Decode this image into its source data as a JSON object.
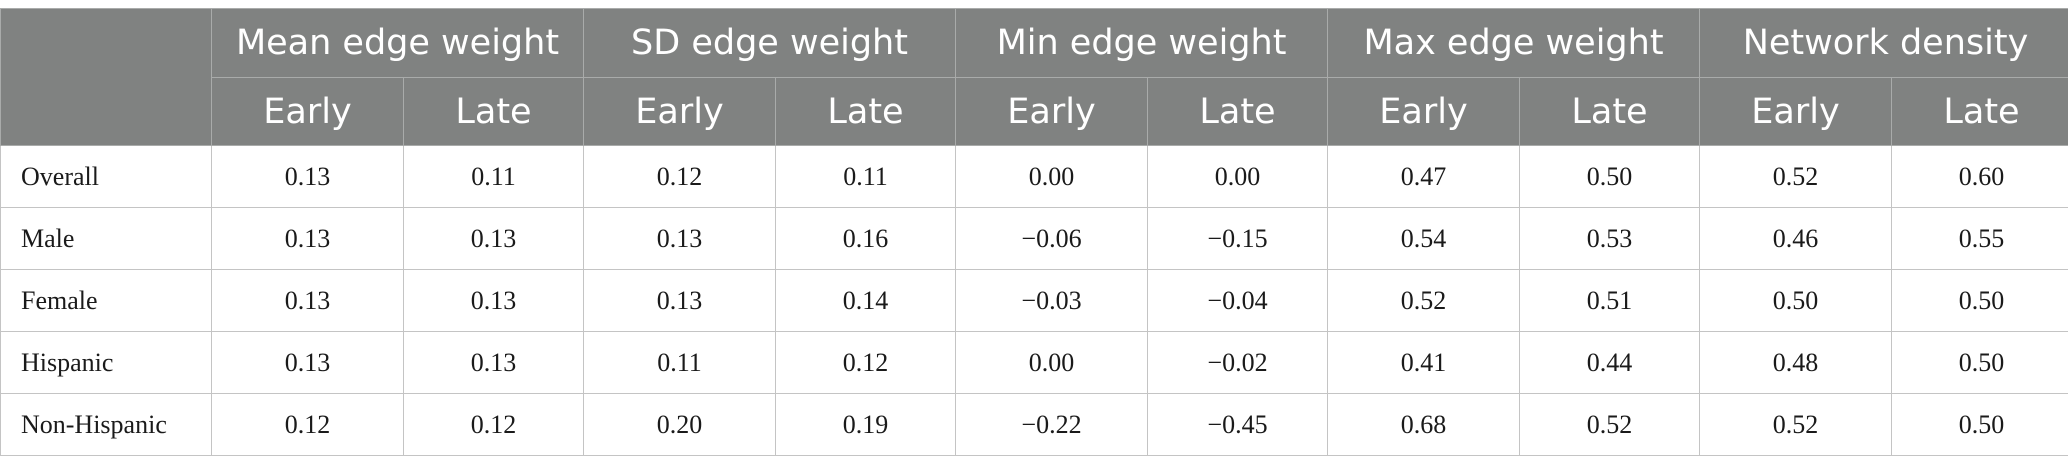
{
  "table": {
    "groups": [
      "Mean edge weight",
      "SD edge weight",
      "Min edge weight",
      "Max edge weight",
      "Network density"
    ],
    "subheaders": [
      "Early",
      "Late"
    ],
    "rows": [
      {
        "label": "Overall",
        "values": [
          "0.13",
          "0.11",
          "0.12",
          "0.11",
          "0.00",
          "0.00",
          "0.47",
          "0.50",
          "0.52",
          "0.60"
        ]
      },
      {
        "label": "Male",
        "values": [
          "0.13",
          "0.13",
          "0.13",
          "0.16",
          "−0.06",
          "−0.15",
          "0.54",
          "0.53",
          "0.46",
          "0.55"
        ]
      },
      {
        "label": "Female",
        "values": [
          "0.13",
          "0.13",
          "0.13",
          "0.14",
          "−0.03",
          "−0.04",
          "0.52",
          "0.51",
          "0.50",
          "0.50"
        ]
      },
      {
        "label": "Hispanic",
        "values": [
          "0.13",
          "0.13",
          "0.11",
          "0.12",
          "0.00",
          "−0.02",
          "0.41",
          "0.44",
          "0.48",
          "0.50"
        ]
      },
      {
        "label": "Non-Hispanic",
        "values": [
          "0.12",
          "0.12",
          "0.20",
          "0.19",
          "−0.22",
          "−0.45",
          "0.68",
          "0.52",
          "0.52",
          "0.50"
        ]
      }
    ]
  }
}
